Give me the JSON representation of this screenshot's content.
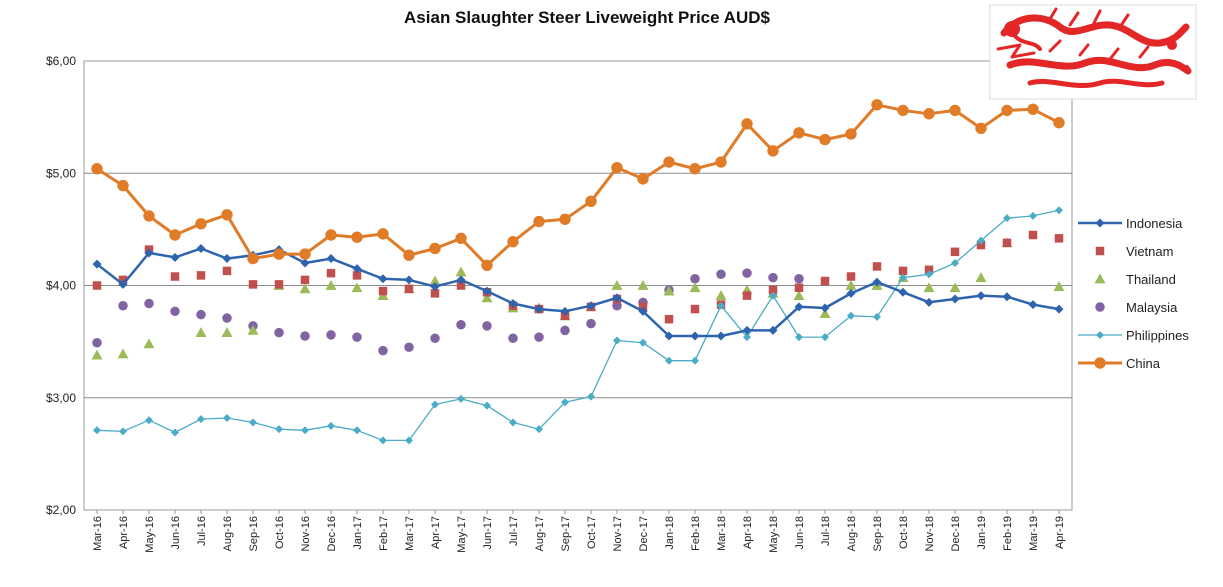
{
  "chart_data": {
    "type": "line",
    "title": "Asian Slaughter Steer Liveweight Price AUD$",
    "xlabel": "",
    "ylabel": "",
    "ylim": [
      2,
      6
    ],
    "yticks": [
      2,
      3,
      4,
      5,
      6
    ],
    "ytick_labels": [
      "$2,00",
      "$3,00",
      "$4,00",
      "$5,00",
      "$6,00"
    ],
    "grid": "horizontal",
    "legend_position": "right",
    "categories": [
      "Mar-16",
      "Apr-16",
      "May-16",
      "Jun-16",
      "Jul-16",
      "Aug-16",
      "Sep-16",
      "Oct-16",
      "Nov-16",
      "Dec-16",
      "Jan-17",
      "Feb-17",
      "Mar-17",
      "Apr-17",
      "May-17",
      "Jun-17",
      "Jul-17",
      "Aug-17",
      "Sep-17",
      "Oct-17",
      "Nov-17",
      "Dec-17",
      "Jan-18",
      "Feb-18",
      "Mar-18",
      "Apr-18",
      "May-18",
      "Jun-18",
      "Jul-18",
      "Aug-18",
      "Sep-18",
      "Oct-18",
      "Nov-18",
      "Dec-18",
      "Jan-19",
      "Feb-19",
      "Mar-19",
      "Apr-19"
    ],
    "series": [
      {
        "name": "Indonesia",
        "color": "#2E64AE",
        "marker": "diamond",
        "line": true,
        "values": [
          4.19,
          4.01,
          4.29,
          4.25,
          4.33,
          4.24,
          4.27,
          4.32,
          4.2,
          4.24,
          4.15,
          4.06,
          4.05,
          3.99,
          4.05,
          3.95,
          3.84,
          3.79,
          3.77,
          3.82,
          3.89,
          3.77,
          3.55,
          3.55,
          3.55,
          3.6,
          3.6,
          3.81,
          3.8,
          3.93,
          4.03,
          3.94,
          3.85,
          3.88,
          3.91,
          3.9,
          3.83,
          3.79
        ]
      },
      {
        "name": "Vietnam",
        "color": "#C0504D",
        "marker": "square",
        "line": false,
        "values": [
          4.0,
          4.05,
          4.32,
          4.08,
          4.09,
          4.13,
          4.01,
          4.01,
          4.05,
          4.11,
          4.09,
          3.95,
          3.97,
          3.93,
          4.0,
          3.94,
          3.82,
          3.79,
          3.73,
          3.81,
          3.88,
          3.81,
          3.7,
          3.79,
          3.83,
          3.91,
          3.96,
          3.98,
          4.04,
          4.08,
          4.17,
          4.13,
          4.14,
          4.3,
          4.36,
          4.38,
          4.45,
          4.42
        ]
      },
      {
        "name": "Thailand",
        "color": "#9BBB59",
        "marker": "triangle",
        "line": false,
        "values": [
          3.38,
          3.39,
          3.48,
          null,
          3.58,
          3.58,
          3.6,
          4.0,
          3.97,
          4.0,
          3.98,
          3.91,
          3.97,
          4.04,
          4.12,
          3.89,
          3.8,
          3.8,
          3.73,
          3.81,
          4.0,
          4.0,
          3.95,
          3.98,
          3.91,
          3.96,
          3.93,
          3.91,
          3.75,
          4.0,
          4.0,
          4.07,
          3.98,
          3.98,
          4.07,
          4.38,
          null,
          3.99
        ]
      },
      {
        "name": "Malaysia",
        "color": "#8064A2",
        "marker": "circle",
        "line": false,
        "values": [
          3.49,
          3.82,
          3.84,
          3.77,
          3.74,
          3.71,
          3.64,
          3.58,
          3.55,
          3.56,
          3.54,
          3.42,
          3.45,
          3.53,
          3.65,
          3.64,
          3.53,
          3.54,
          3.6,
          3.66,
          3.82,
          3.85,
          3.96,
          4.06,
          4.1,
          4.11,
          4.07,
          4.06,
          null,
          null,
          null,
          null,
          null,
          null,
          null,
          null,
          null,
          null
        ]
      },
      {
        "name": "Philippines",
        "color": "#4BACC6",
        "marker": "diamond",
        "line": true,
        "values": [
          2.71,
          2.7,
          2.8,
          2.69,
          2.81,
          2.82,
          2.78,
          2.72,
          2.71,
          2.75,
          2.71,
          2.62,
          2.62,
          2.94,
          2.99,
          2.93,
          2.78,
          2.72,
          2.96,
          3.01,
          3.51,
          3.49,
          3.33,
          3.33,
          3.82,
          3.54,
          3.91,
          3.54,
          3.54,
          3.73,
          3.72,
          4.07,
          4.1,
          4.2,
          4.4,
          4.6,
          4.62,
          4.67
        ]
      },
      {
        "name": "China",
        "color": "#E07B28",
        "marker": "circle",
        "line": true,
        "values": [
          5.04,
          4.89,
          4.62,
          4.45,
          4.55,
          4.63,
          4.24,
          4.28,
          4.28,
          4.45,
          4.43,
          4.46,
          4.27,
          4.33,
          4.42,
          4.18,
          4.39,
          4.57,
          4.59,
          4.75,
          5.05,
          4.95,
          5.1,
          5.04,
          5.1,
          5.44,
          5.2,
          5.36,
          5.3,
          5.35,
          5.61,
          5.56,
          5.53,
          5.56,
          5.4,
          5.56,
          5.57,
          5.45
        ]
      }
    ]
  }
}
